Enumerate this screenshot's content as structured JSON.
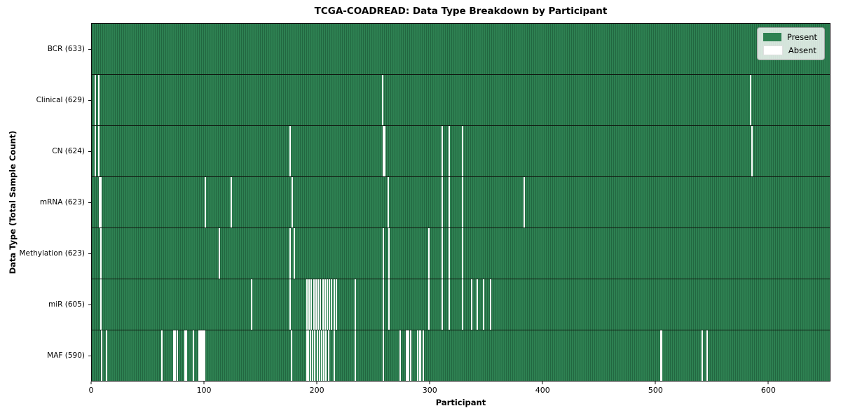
{
  "title": "TCGA-COADREAD: Data Type Breakdown by Participant",
  "chart_data": {
    "type": "heatmap",
    "title": "TCGA-COADREAD: Data Type Breakdown by Participant",
    "xlabel": "Participant",
    "ylabel": "Data Type (Total Sample Count)",
    "n_participants": 633,
    "xlim": [
      0,
      655
    ],
    "x_ticks": [
      0,
      100,
      200,
      300,
      400,
      500,
      600
    ],
    "grid": false,
    "legend_position": "upper right",
    "colors": {
      "present": "#2e8152",
      "absent": "#ffffff",
      "stripe": "rgba(6,40,22,0.30)",
      "border": "#0e0e0e"
    },
    "legend": {
      "items": [
        {
          "label": "Present",
          "color": "#2e8152"
        },
        {
          "label": "Absent",
          "color": "#ffffff"
        }
      ]
    },
    "rows": [
      {
        "label": "BCR (633)",
        "data_type": "BCR",
        "total": 633,
        "absent": []
      },
      {
        "label": "Clinical (629)",
        "data_type": "Clinical",
        "total": 629,
        "absent": [
          3,
          6,
          258,
          585
        ]
      },
      {
        "label": "CN (624)",
        "data_type": "CN",
        "total": 624,
        "absent": [
          3,
          6,
          176,
          259,
          260,
          311,
          317,
          329,
          586
        ]
      },
      {
        "label": "mRNA (623)",
        "data_type": "mRNA",
        "total": 623,
        "absent": [
          7,
          8,
          101,
          124,
          178,
          263,
          311,
          317,
          329,
          384
        ]
      },
      {
        "label": "Methylation (623)",
        "data_type": "Methylation",
        "total": 623,
        "absent": [
          8,
          113,
          176,
          180,
          259,
          264,
          299,
          311,
          317,
          329
        ]
      },
      {
        "label": "miR (605)",
        "data_type": "miR",
        "total": 605,
        "absent": [
          8,
          142,
          176,
          191,
          193,
          195,
          197,
          199,
          201,
          203,
          205,
          207,
          209,
          211,
          213,
          215,
          217,
          234,
          259,
          264,
          299,
          311,
          317,
          329,
          337,
          342,
          348,
          354
        ]
      },
      {
        "label": "MAF (590)",
        "data_type": "MAF",
        "total": 590,
        "absent": [
          9,
          13,
          62,
          73,
          74,
          76,
          83,
          84,
          90,
          95,
          96,
          97,
          98,
          99,
          100,
          177,
          191,
          192,
          194,
          196,
          198,
          200,
          202,
          204,
          206,
          208,
          210,
          215,
          234,
          259,
          274,
          279,
          280,
          281,
          283,
          289,
          291,
          292,
          294,
          505,
          506,
          542,
          546
        ]
      }
    ]
  }
}
